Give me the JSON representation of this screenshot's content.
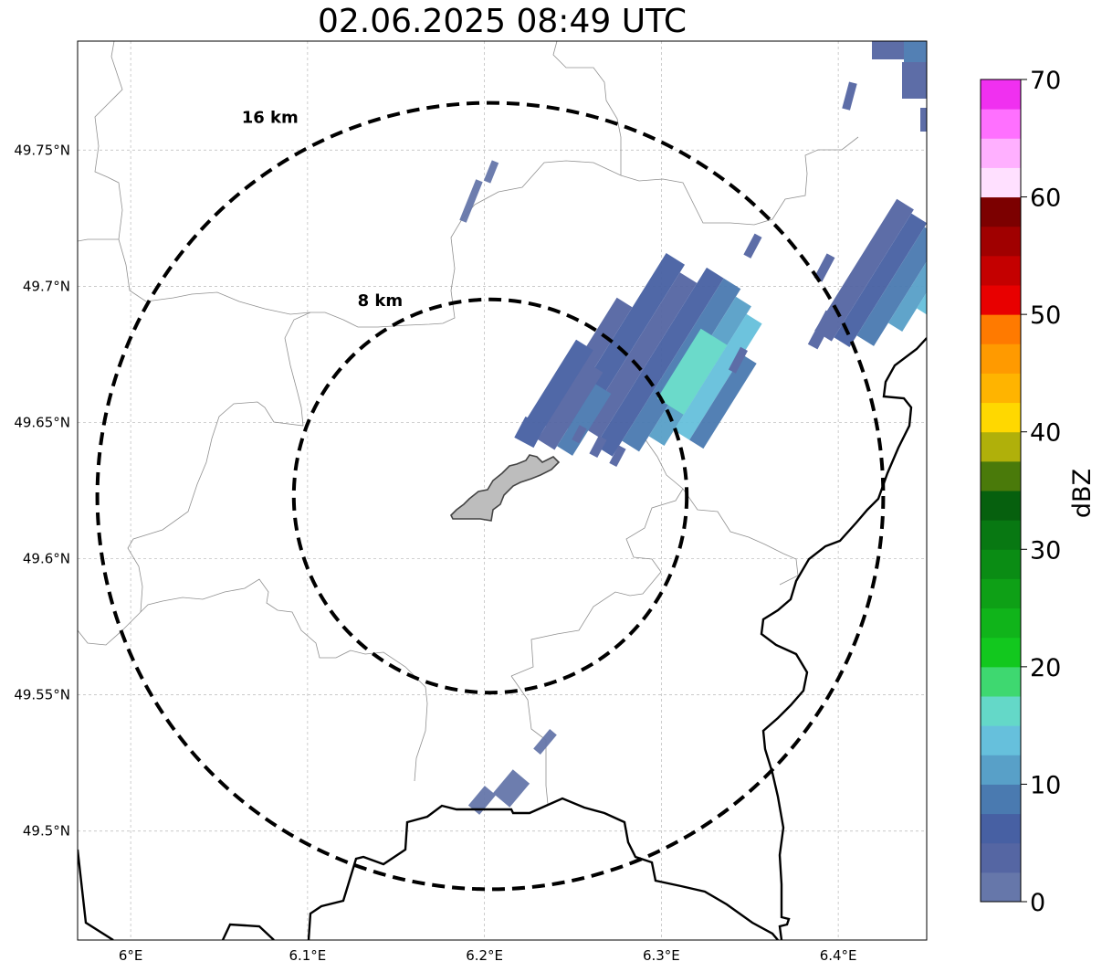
{
  "title": "02.06.2025 08:49 UTC",
  "map": {
    "lon_range": [
      5.97,
      6.45
    ],
    "lat_range": [
      49.46,
      49.79
    ],
    "x_ticks": [
      {
        "value": 6.0,
        "label": "6°E"
      },
      {
        "value": 6.1,
        "label": "6.1°E"
      },
      {
        "value": 6.2,
        "label": "6.2°E"
      },
      {
        "value": 6.3,
        "label": "6.3°E"
      },
      {
        "value": 6.4,
        "label": "6.4°E"
      }
    ],
    "y_ticks": [
      {
        "value": 49.75,
        "label": "49.75°N"
      },
      {
        "value": 49.7,
        "label": "49.7°N"
      },
      {
        "value": 49.65,
        "label": "49.65°N"
      },
      {
        "value": 49.6,
        "label": "49.6°N"
      },
      {
        "value": 49.55,
        "label": "49.55°N"
      },
      {
        "value": 49.5,
        "label": "49.5°N"
      }
    ],
    "grid": true,
    "rings": [
      {
        "radius_km": 8,
        "label": "8 km"
      },
      {
        "radius_km": 16,
        "label": "16 km"
      }
    ]
  },
  "colorbar": {
    "label": "dBZ",
    "min": 0,
    "max": 70,
    "ticks": [
      "0",
      "10",
      "20",
      "30",
      "40",
      "50",
      "60",
      "70"
    ],
    "colors": [
      "#6677aa",
      "#5566a3",
      "#4760a3",
      "#4a7ab0",
      "#58a0c8",
      "#66c0dc",
      "#64d8c8",
      "#3ed870",
      "#12c81e",
      "#10b41a",
      "#0ea016",
      "#0a8c14",
      "#087812",
      "#06600e",
      "#4a7a0a",
      "#b0b00a",
      "#ffd800",
      "#ffb400",
      "#ff9a00",
      "#ff7a00",
      "#e80000",
      "#c40000",
      "#a00000",
      "#7c0000",
      "#ffe0ff",
      "#ffb0ff",
      "#ff70ff",
      "#f030f0"
    ]
  }
}
